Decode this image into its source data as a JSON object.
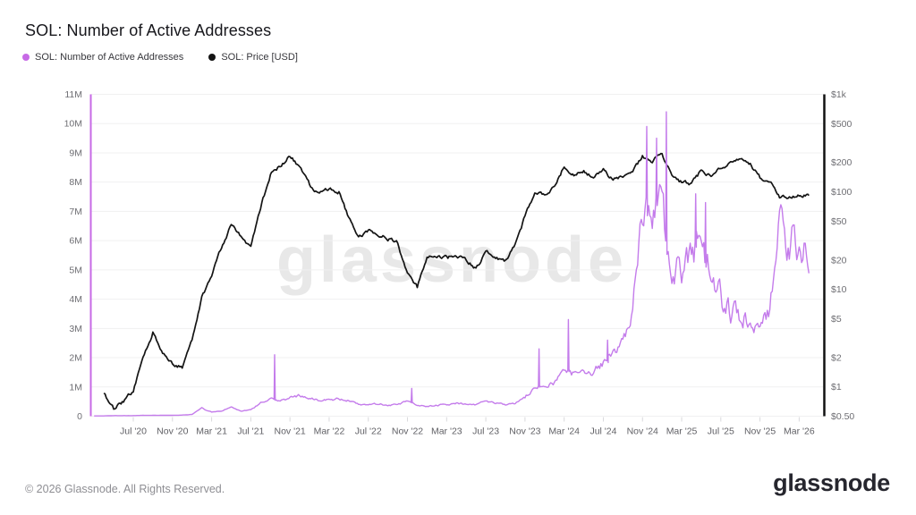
{
  "page": {
    "title": "SOL: Number of Active Addresses"
  },
  "legend": {
    "items": [
      {
        "label": "SOL: Number of Active Addresses",
        "color": "#c76ae6"
      },
      {
        "label": "SOL: Price [USD]",
        "color": "#141414"
      }
    ]
  },
  "watermark": "glassnode",
  "footer": {
    "copyright": "© 2026 Glassnode. All Rights Reserved.",
    "brand": "glassnode"
  },
  "chart_data": {
    "type": "line",
    "title": "SOL: Number of Active Addresses",
    "grid": "horizontal",
    "legend_position": "top-left",
    "x_axis": {
      "ticks": [
        "Jul '20",
        "Nov '20",
        "Mar '21",
        "Jul '21",
        "Nov '21",
        "Mar '22",
        "Jul '22",
        "Nov '22",
        "Mar '23",
        "Jul '23",
        "Nov '23",
        "Mar '24",
        "Jul '24",
        "Nov '24",
        "Mar '25",
        "Jul '25",
        "Nov '25",
        "Mar '26"
      ],
      "tick_interval_months": 4
    },
    "left_axis": {
      "series": "SOL: Number of Active Addresses",
      "scale": "linear",
      "range_addresses": [
        0,
        11000000
      ],
      "ticks": [
        "0",
        "1M",
        "2M",
        "3M",
        "4M",
        "5M",
        "6M",
        "7M",
        "8M",
        "9M",
        "10M",
        "11M"
      ]
    },
    "right_axis": {
      "series": "SOL: Price [USD]",
      "scale": "log",
      "range_usd": [
        0.5,
        1000
      ],
      "ticks": [
        {
          "label": "$0.50",
          "value": 0.5
        },
        {
          "label": "$1",
          "value": 1
        },
        {
          "label": "$2",
          "value": 2
        },
        {
          "label": "$5",
          "value": 5
        },
        {
          "label": "$10",
          "value": 10
        },
        {
          "label": "$20",
          "value": 20
        },
        {
          "label": "$50",
          "value": 50
        },
        {
          "label": "$100",
          "value": 100
        },
        {
          "label": "$200",
          "value": 200
        },
        {
          "label": "$500",
          "value": 500
        },
        {
          "label": "$1k",
          "value": 1000
        }
      ]
    },
    "dates": [
      "2020-03",
      "2020-04",
      "2020-05",
      "2020-06",
      "2020-07",
      "2020-08",
      "2020-09",
      "2020-10",
      "2020-11",
      "2020-12",
      "2021-01",
      "2021-02",
      "2021-03",
      "2021-04",
      "2021-05",
      "2021-06",
      "2021-07",
      "2021-08",
      "2021-09",
      "2021-10",
      "2021-11",
      "2021-12",
      "2022-01",
      "2022-02",
      "2022-03",
      "2022-04",
      "2022-05",
      "2022-06",
      "2022-07",
      "2022-08",
      "2022-09",
      "2022-10",
      "2022-11",
      "2022-12",
      "2023-01",
      "2023-02",
      "2023-03",
      "2023-04",
      "2023-05",
      "2023-06",
      "2023-07",
      "2023-08",
      "2023-09",
      "2023-10",
      "2023-11",
      "2023-12",
      "2024-01",
      "2024-02",
      "2024-03",
      "2024-04",
      "2024-05",
      "2024-06",
      "2024-07",
      "2024-08",
      "2024-09",
      "2024-10",
      "2024-11",
      "2024-12",
      "2025-01",
      "2025-02",
      "2025-03",
      "2025-04",
      "2025-05",
      "2025-06",
      "2025-07",
      "2025-08",
      "2025-09",
      "2025-10",
      "2025-11",
      "2025-12",
      "2026-01",
      "2026-02",
      "2026-03",
      "2026-04"
    ],
    "series": [
      {
        "name": "SOL: Number of Active Addresses",
        "axis": "left",
        "color": "#c47ceb",
        "unit": "millions_of_addresses",
        "values": [
          0.01,
          0.01,
          0.02,
          0.02,
          0.02,
          0.03,
          0.03,
          0.03,
          0.03,
          0.04,
          0.06,
          0.28,
          0.14,
          0.17,
          0.32,
          0.18,
          0.22,
          0.45,
          0.62,
          0.54,
          0.62,
          0.7,
          0.62,
          0.55,
          0.55,
          0.6,
          0.52,
          0.42,
          0.38,
          0.42,
          0.38,
          0.4,
          0.52,
          0.38,
          0.34,
          0.38,
          0.4,
          0.44,
          0.4,
          0.4,
          0.52,
          0.44,
          0.4,
          0.44,
          0.62,
          1.05,
          1.05,
          1.15,
          1.55,
          1.45,
          1.45,
          1.55,
          1.85,
          2.1,
          2.5,
          3.6,
          6.8,
          7.2,
          7.0,
          5.3,
          4.7,
          5.6,
          5.8,
          4.7,
          4.0,
          3.6,
          3.3,
          3.3,
          3.5,
          3.9,
          6.3,
          5.9,
          6.0,
          5.5
        ],
        "spikes": {
          "2021-09": 2.1,
          "2022-11": 0.95,
          "2023-12": 2.3,
          "2024-03": 3.3,
          "2024-07": 2.6,
          "2024-11": 9.9,
          "2024-12": 9.5,
          "2025-01": 10.4,
          "2025-04": 7.6,
          "2025-05": 7.3
        }
      },
      {
        "name": "SOL: Price [USD]",
        "axis": "right",
        "color": "#141414",
        "unit": "USD",
        "values": [
          null,
          0.85,
          0.6,
          0.72,
          0.9,
          2.0,
          3.6,
          2.3,
          1.7,
          1.6,
          3.0,
          8.5,
          13.5,
          27,
          46,
          34,
          27,
          70,
          150,
          185,
          235,
          180,
          120,
          95,
          110,
          100,
          55,
          34,
          40,
          37,
          33,
          30,
          14,
          10.5,
          22,
          22,
          21,
          22,
          20,
          16,
          25,
          21,
          19.5,
          29,
          56,
          98,
          93,
          110,
          185,
          145,
          165,
          140,
          165,
          135,
          140,
          168,
          230,
          205,
          245,
          150,
          125,
          120,
          165,
          145,
          175,
          195,
          225,
          195,
          140,
          130,
          88,
          90,
          92,
          90
        ]
      }
    ]
  }
}
